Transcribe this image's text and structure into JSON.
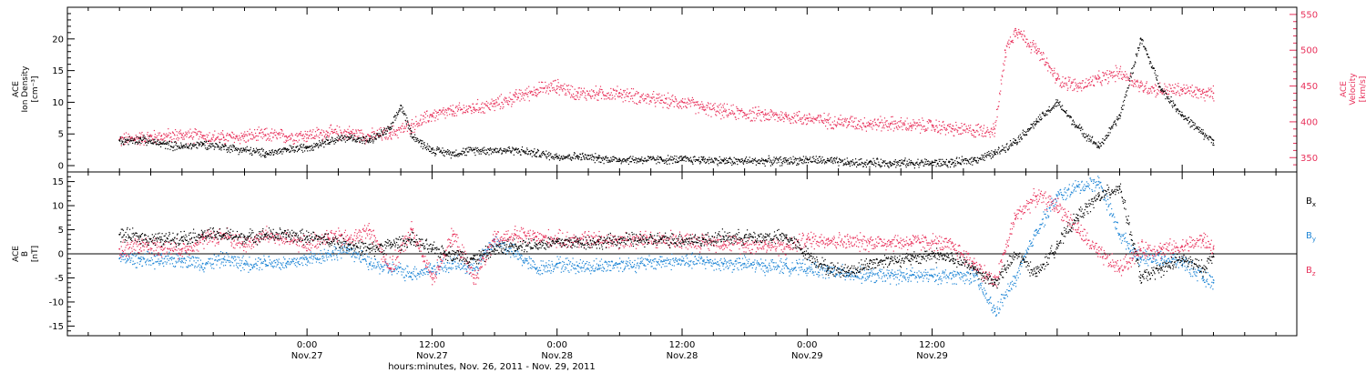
{
  "colors": {
    "black": "#000000",
    "red": "#e8305a",
    "blue": "#1f86d6"
  },
  "chart_data": [
    {
      "type": "scatter",
      "panel": "ion-density-velocity",
      "ylabel": [
        "ACE",
        "Ion Density",
        "[cm⁻³]"
      ],
      "ylim": [
        -1,
        25
      ],
      "yticks": [
        0,
        5,
        10,
        15,
        20
      ],
      "y2label": [
        "ACE",
        "Velocity",
        "[km/s]"
      ],
      "y2lim": [
        330,
        560
      ],
      "y2ticks": [
        350,
        400,
        450,
        500,
        550
      ],
      "series": [
        {
          "axis": "left",
          "color": "#000000",
          "x": [
            -18,
            -16,
            -14,
            -12,
            -10,
            -8,
            -6,
            -4,
            -2,
            0,
            2,
            4,
            6,
            8,
            9,
            10,
            11,
            12,
            14,
            16,
            18,
            20,
            22,
            24,
            26,
            28,
            30,
            32,
            34,
            36,
            38,
            40,
            42,
            44,
            46,
            48,
            50,
            52,
            54,
            56,
            58,
            60,
            62,
            64,
            66,
            68,
            70,
            72,
            74,
            76,
            78,
            80,
            82,
            84,
            86,
            87
          ],
          "y": [
            4,
            4.2,
            3.5,
            3,
            3.5,
            3,
            2.5,
            2,
            2.5,
            3,
            4,
            4.5,
            4,
            6,
            9.5,
            5,
            3.5,
            2.5,
            2,
            2.5,
            2.5,
            2.5,
            2,
            1.5,
            1.5,
            1.2,
            1,
            1,
            1,
            1,
            1,
            0.8,
            0.8,
            0.8,
            0.8,
            1,
            0.8,
            0.5,
            0.5,
            0.5,
            0.5,
            0.5,
            0.5,
            1,
            2,
            4,
            7,
            10,
            6,
            3,
            8,
            20,
            12,
            8,
            5,
            4
          ]
        },
        {
          "axis": "right",
          "color": "#e8305a",
          "x": [
            -18,
            -16,
            -14,
            -12,
            -10,
            -8,
            -6,
            -4,
            -2,
            0,
            2,
            4,
            6,
            8,
            10,
            12,
            14,
            16,
            18,
            20,
            22,
            24,
            26,
            28,
            30,
            32,
            34,
            36,
            38,
            40,
            42,
            44,
            46,
            48,
            50,
            52,
            54,
            56,
            58,
            60,
            62,
            64,
            66,
            67,
            68,
            70,
            72,
            74,
            76,
            78,
            80,
            82,
            84,
            86,
            87
          ],
          "y": [
            375,
            378,
            380,
            382,
            380,
            378,
            380,
            382,
            380,
            382,
            385,
            385,
            380,
            385,
            395,
            410,
            415,
            420,
            425,
            435,
            445,
            450,
            440,
            440,
            440,
            435,
            430,
            428,
            420,
            415,
            412,
            410,
            408,
            405,
            402,
            400,
            398,
            398,
            395,
            395,
            390,
            388,
            390,
            500,
            530,
            500,
            460,
            450,
            460,
            470,
            450,
            445,
            445,
            440,
            440
          ]
        }
      ]
    },
    {
      "type": "scatter",
      "panel": "magnetic-field",
      "ylabel": [
        "ACE",
        "B",
        "[nT]"
      ],
      "ylim": [
        -17,
        17
      ],
      "yticks": [
        -15,
        -10,
        -5,
        0,
        5,
        10,
        15
      ],
      "legend": [
        "Bx",
        "By",
        "Bz"
      ],
      "series": [
        {
          "name": "Bx",
          "color": "#000000",
          "x": [
            -18,
            -16,
            -14,
            -12,
            -10,
            -8,
            -6,
            -4,
            -2,
            0,
            2,
            4,
            6,
            8,
            10,
            12,
            14,
            16,
            18,
            20,
            22,
            24,
            26,
            28,
            30,
            32,
            34,
            36,
            38,
            40,
            42,
            44,
            46,
            48,
            50,
            52,
            54,
            56,
            58,
            60,
            62,
            64,
            66,
            68,
            70,
            72,
            74,
            76,
            78,
            80,
            82,
            84,
            86,
            87
          ],
          "y": [
            4,
            3.5,
            3,
            3.5,
            4,
            4,
            3.5,
            4,
            4,
            3.5,
            3,
            2,
            1,
            2,
            3,
            1,
            0,
            -1,
            1,
            2,
            2,
            2.5,
            2.5,
            2.5,
            3,
            3,
            3,
            3,
            3,
            3.5,
            3.5,
            3.5,
            3.5,
            0,
            -3,
            -3.5,
            -2,
            -1,
            -1,
            0,
            -1,
            -3,
            -6,
            0,
            -4,
            2,
            8,
            12,
            14,
            -5,
            -3,
            -1,
            -3,
            0
          ]
        },
        {
          "name": "By",
          "color": "#1f86d6",
          "x": [
            -18,
            -16,
            -14,
            -12,
            -10,
            -8,
            -6,
            -4,
            -2,
            0,
            2,
            4,
            6,
            8,
            10,
            12,
            14,
            16,
            18,
            20,
            22,
            24,
            26,
            28,
            30,
            32,
            34,
            36,
            38,
            40,
            42,
            44,
            46,
            48,
            50,
            52,
            54,
            56,
            58,
            60,
            62,
            64,
            66,
            68,
            70,
            72,
            74,
            76,
            78,
            80,
            82,
            84,
            86,
            87
          ],
          "y": [
            -1,
            -1,
            -1.5,
            -1,
            -2,
            -1,
            -2,
            -1.5,
            -2,
            -1,
            0,
            1,
            -2,
            -3,
            -4,
            -3,
            -2,
            -3,
            3,
            0,
            -3,
            -2,
            -2.5,
            -2.5,
            -2,
            -2,
            -1.5,
            -1.5,
            -1.5,
            -2,
            -2,
            -2.5,
            -2.5,
            -3,
            -3.5,
            -4,
            -4.5,
            -4.5,
            -4.5,
            -4.5,
            -4.5,
            -4.5,
            -12,
            -5,
            5,
            12,
            14,
            15,
            4,
            -1,
            -1,
            -1.5,
            -5,
            -6
          ]
        },
        {
          "name": "Bz",
          "color": "#e8305a",
          "x": [
            -18,
            -16,
            -14,
            -12,
            -10,
            -8,
            -6,
            -4,
            -2,
            0,
            2,
            4,
            6,
            8,
            10,
            12,
            14,
            16,
            18,
            20,
            22,
            24,
            26,
            28,
            30,
            32,
            34,
            36,
            38,
            40,
            42,
            44,
            46,
            48,
            50,
            52,
            54,
            56,
            58,
            60,
            62,
            64,
            66,
            68,
            70,
            72,
            74,
            76,
            78,
            80,
            82,
            84,
            86,
            87
          ],
          "y": [
            1,
            2,
            1.5,
            1,
            3,
            4,
            2,
            4,
            3,
            2,
            4,
            3,
            5,
            -3,
            5,
            -5,
            4,
            -5,
            3,
            4,
            3.5,
            3,
            3,
            3,
            3,
            3,
            3,
            3,
            2.5,
            2.5,
            2,
            2,
            1.5,
            3,
            3,
            2.5,
            2.5,
            2.5,
            2.5,
            2.5,
            1.5,
            -2,
            -6,
            8,
            12,
            10,
            5,
            0,
            -3,
            1,
            1,
            1.5,
            3,
            1
          ]
        }
      ]
    }
  ],
  "x_axis": {
    "xlim": [
      -23,
      95
    ],
    "major_ticks": [
      0,
      12,
      24,
      36,
      48,
      60,
      72,
      84
    ],
    "tick_labels": [
      {
        "time": "0:00",
        "date": "Nov.27"
      },
      {
        "time": "12:00",
        "date": "Nov.27"
      },
      {
        "time": "0:00",
        "date": "Nov.28"
      },
      {
        "time": "12:00",
        "date": "Nov.28"
      },
      {
        "time": "0:00",
        "date": "Nov.29"
      },
      {
        "time": "12:00",
        "date": "Nov.29"
      }
    ],
    "tick_label_positions": [
      0,
      12,
      24,
      36,
      48,
      60
    ],
    "xlabel": "hours:minutes, Nov. 26, 2011 - Nov. 29, 2011"
  }
}
